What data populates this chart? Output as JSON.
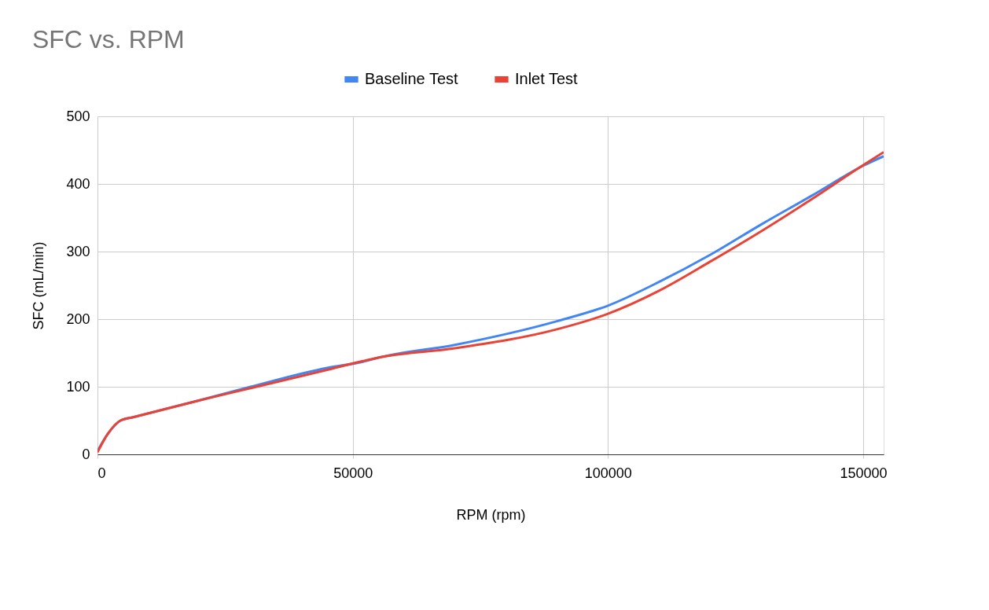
{
  "chart_data": {
    "type": "line",
    "title": "SFC vs. RPM",
    "xlabel": "RPM (rpm)",
    "ylabel": "SFC (mL/min)",
    "xlim": [
      0,
      154000
    ],
    "xticks": [
      0,
      50000,
      100000,
      150000
    ],
    "ylim": [
      0,
      500
    ],
    "yticks": [
      0,
      100,
      200,
      300,
      400,
      500
    ],
    "grid": true,
    "legend": "top",
    "marker": "none",
    "line_style": "solid",
    "series": [
      {
        "name": "Baseline Test",
        "color": "#4285f4",
        "x": [
          0,
          2000,
          4500,
          7000,
          20000,
          30000,
          45000,
          52000,
          55000,
          70000,
          90000,
          100000,
          110000,
          120000,
          130000,
          140000,
          150000,
          154000
        ],
        "values": [
          5,
          30,
          50,
          55,
          80,
          100,
          128,
          137,
          143,
          162,
          197,
          220,
          255,
          295,
          340,
          383,
          427,
          441
        ]
      },
      {
        "name": "Inlet Test",
        "color": "#ea4335",
        "x": [
          0,
          2000,
          4500,
          7000,
          20000,
          30000,
          45000,
          52000,
          55000,
          70000,
          90000,
          100000,
          110000,
          120000,
          130000,
          140000,
          150000,
          154000
        ],
        "values": [
          3,
          30,
          50,
          55,
          80,
          98,
          125,
          138,
          143,
          157,
          185,
          208,
          242,
          285,
          330,
          378,
          428,
          447
        ]
      }
    ]
  }
}
